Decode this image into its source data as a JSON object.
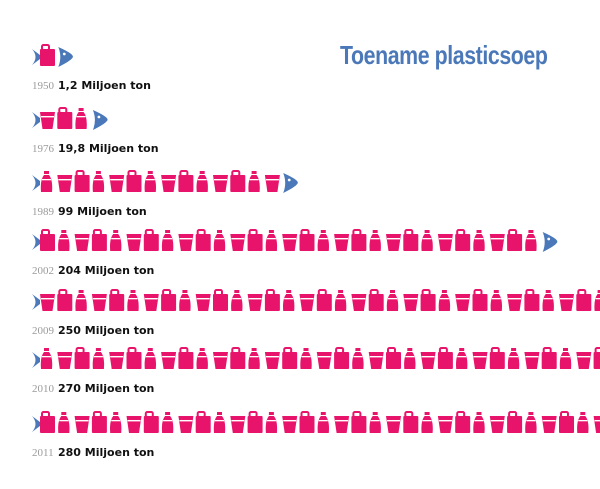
{
  "title": "Toename plasticsoep",
  "colors": {
    "title": "#4a78b8",
    "icons": "#e8146c",
    "fish": "#4a78b8",
    "year": "#9a9a9a"
  },
  "icon_names": [
    "bag-icon",
    "cup-icon",
    "bottle-icon"
  ],
  "chart_data": {
    "type": "pictograph",
    "title": "Toename plasticsoep",
    "unit": "Miljoen ton",
    "categories": [
      "1950",
      "1976",
      "1989",
      "2002",
      "2009",
      "2010",
      "2011"
    ],
    "values": [
      1.2,
      19.8,
      99,
      204,
      250,
      270,
      280
    ],
    "labels": [
      "1,2 Miljoen ton",
      "19,8 Miljoen ton",
      "99 Miljoen ton",
      "204 Miljoen ton",
      "250 Miljoen ton",
      "270 Miljoen ton",
      "280 Miljoen ton"
    ]
  }
}
